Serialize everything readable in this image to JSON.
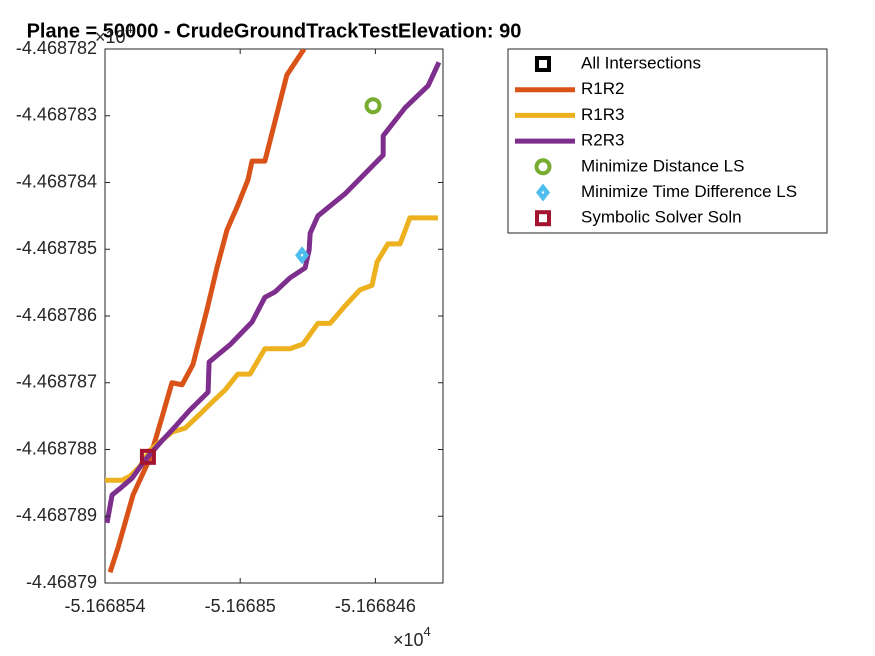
{
  "chart_data": {
    "type": "line",
    "title": "Plane = 50000 - CrudeGroundTrackTestElevation: 90",
    "xlim": [
      -5.166854,
      -5.166844
    ],
    "ylim": [
      -4.46879,
      -4.468782
    ],
    "xticks": [
      -5.166854,
      -5.16685,
      -5.166846
    ],
    "yticks": [
      -4.468782,
      -4.468783,
      -4.468784,
      -4.468785,
      -4.468786,
      -4.468787,
      -4.468788,
      -4.468789,
      -4.46879
    ],
    "x_multiplier": {
      "base": "×10",
      "exponent": "4"
    },
    "y_multiplier": {
      "base": "×10",
      "exponent": "4"
    },
    "legend": "outside-right-top",
    "series": [
      {
        "name": "All Intersections",
        "color": "#000000",
        "marker": "square",
        "x": [],
        "values": []
      },
      {
        "name": "R1R2",
        "color": "#D95319",
        "marker": "none",
        "x": [
          -5.16685385,
          -5.16685362,
          -5.16685317,
          -5.16685267,
          -5.16685231,
          -5.16685202,
          -5.16685172,
          -5.1668514,
          -5.16685098,
          -5.16685069,
          -5.16685039,
          -5.16685007,
          -5.16684977,
          -5.16684965,
          -5.16684927,
          -5.16684862,
          -5.16684811
        ],
        "values": [
          -4.46878984,
          -4.46878948,
          -4.46878868,
          -4.46878813,
          -4.46878751,
          -4.468787,
          -4.46878703,
          -4.46878673,
          -4.4687859,
          -4.46878528,
          -4.46878471,
          -4.46878434,
          -4.46878396,
          -4.46878368,
          -4.46878368,
          -4.46878239,
          -4.468782
        ]
      },
      {
        "name": "R1R3",
        "color": "#EDB120",
        "marker": "none",
        "x": [
          -5.166854,
          -5.1668535,
          -5.16685326,
          -5.16685296,
          -5.16685267,
          -5.16685231,
          -5.16685202,
          -5.16685163,
          -5.16685119,
          -5.16685083,
          -5.16685045,
          -5.16685007,
          -5.16684971,
          -5.16684927,
          -5.16684853,
          -5.16684814,
          -5.1668477,
          -5.16684734,
          -5.1668469,
          -5.16684646,
          -5.1668461,
          -5.16684595,
          -5.16684563,
          -5.16684527,
          -5.16684498,
          -5.16684415
        ],
        "values": [
          -4.46878846,
          -4.46878846,
          -4.4687884,
          -4.46878825,
          -4.46878801,
          -4.46878786,
          -4.46878774,
          -4.46878768,
          -4.46878747,
          -4.46878729,
          -4.46878711,
          -4.46878687,
          -4.46878687,
          -4.46878649,
          -4.46878649,
          -4.46878642,
          -4.46878611,
          -4.46878611,
          -4.46878585,
          -4.46878561,
          -4.46878554,
          -4.46878519,
          -4.46878492,
          -4.46878492,
          -4.46878453,
          -4.46878453
        ]
      },
      {
        "name": "R2R3",
        "color": "#7E2F8E",
        "marker": "none",
        "x": [
          -5.16685394,
          -5.16685379,
          -5.1668535,
          -5.1668532,
          -5.16685282,
          -5.16685237,
          -5.16685193,
          -5.16685149,
          -5.16685095,
          -5.16685092,
          -5.1668503,
          -5.16684965,
          -5.16684927,
          -5.16684897,
          -5.16684853,
          -5.16684808,
          -5.16684796,
          -5.16684793,
          -5.1668477,
          -5.1668469,
          -5.16684577,
          -5.16684577,
          -5.16684512,
          -5.16684444,
          -5.16684412
        ],
        "values": [
          -4.4687891,
          -4.46878868,
          -4.46878856,
          -4.46878843,
          -4.46878816,
          -4.4687879,
          -4.46878766,
          -4.46878741,
          -4.46878714,
          -4.46878669,
          -4.46878643,
          -4.46878609,
          -4.46878572,
          -4.46878564,
          -4.46878543,
          -4.46878528,
          -4.46878501,
          -4.46878476,
          -4.4687845,
          -4.46878417,
          -4.46878359,
          -4.4687833,
          -4.46878288,
          -4.46878255,
          -4.4687822
        ]
      },
      {
        "name": "Minimize Distance LS",
        "color": "#77AC30",
        "marker": "circle",
        "x": [
          -5.16684607
        ],
        "values": [
          -4.46878285
        ]
      },
      {
        "name": "Minimize Time Difference LS",
        "color": "#4DBEEE",
        "marker": "diamond",
        "x": [
          -5.16684817
        ],
        "values": [
          -4.46878509
        ]
      },
      {
        "name": "Symbolic Solver Soln",
        "color": "#A2142F",
        "marker": "square",
        "x": [
          -5.16685273
        ],
        "values": [
          -4.46878811
        ]
      }
    ]
  }
}
